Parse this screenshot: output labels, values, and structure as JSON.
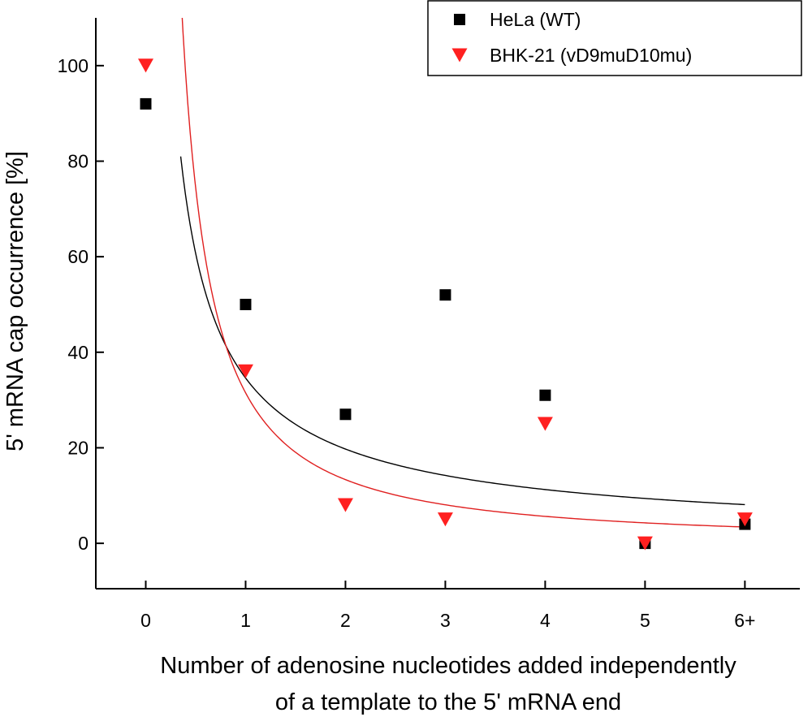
{
  "chart_data": {
    "type": "scatter",
    "categories": [
      "0",
      "1",
      "2",
      "3",
      "4",
      "5",
      "6+"
    ],
    "x": [
      0,
      1,
      2,
      3,
      4,
      5,
      6
    ],
    "series": [
      {
        "name": "HeLa (WT)",
        "marker": "square",
        "color": "#000000",
        "values": [
          92,
          50,
          27,
          52,
          31,
          0,
          4
        ],
        "fit": {
          "a": 34.6,
          "b": -0.81,
          "x_start": 0.35,
          "x_end": 6.0
        }
      },
      {
        "name": "BHK-21 (vD9muD10mu)",
        "marker": "triangle-down",
        "color": "#ff2020",
        "values": [
          100,
          36,
          8,
          5,
          25,
          0,
          5
        ],
        "fit": {
          "a": 31.5,
          "b": -1.24,
          "x_start": 0.35,
          "x_end": 6.0
        }
      }
    ],
    "xlabel": "Number of adenosine nucleotides added independently of a template to the 5' mRNA end",
    "xlabel_lines": [
      "Number of adenosine nucleotides added independently",
      "of a template to the 5' mRNA end"
    ],
    "ylabel": "5' mRNA cap occurrence [%]",
    "xlim": [
      -0.5,
      6.55
    ],
    "ylim": [
      -9.5,
      110
    ],
    "yticks": [
      0,
      20,
      40,
      60,
      80,
      100
    ],
    "legend_position": "top-right",
    "grid": false
  }
}
